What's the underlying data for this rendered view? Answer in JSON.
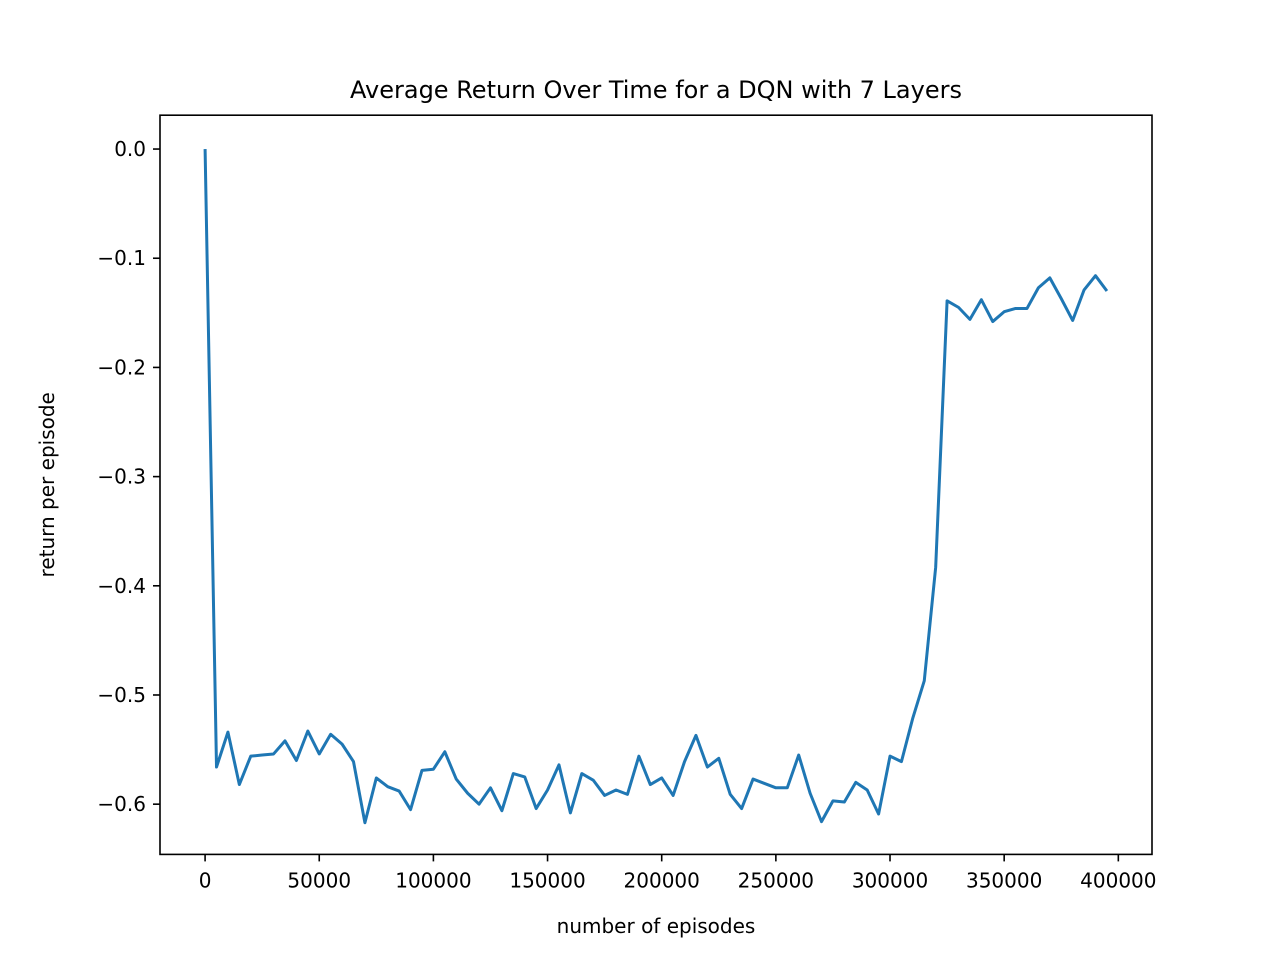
{
  "chart_data": {
    "type": "line",
    "title": "Average Return Over Time for a DQN with 7 Layers",
    "xlabel": "number of episodes",
    "ylabel": "return per episode",
    "xlim": [
      -19750,
      414750
    ],
    "ylim": [
      -0.646,
      0.031
    ],
    "xticks": [
      {
        "value": 0,
        "label": "0"
      },
      {
        "value": 50000,
        "label": "50000"
      },
      {
        "value": 100000,
        "label": "100000"
      },
      {
        "value": 150000,
        "label": "150000"
      },
      {
        "value": 200000,
        "label": "200000"
      },
      {
        "value": 250000,
        "label": "250000"
      },
      {
        "value": 300000,
        "label": "300000"
      },
      {
        "value": 350000,
        "label": "350000"
      },
      {
        "value": 400000,
        "label": "400000"
      }
    ],
    "yticks": [
      {
        "value": 0.0,
        "label": "0.0"
      },
      {
        "value": -0.1,
        "label": "−0.1"
      },
      {
        "value": -0.2,
        "label": "−0.2"
      },
      {
        "value": -0.3,
        "label": "−0.3"
      },
      {
        "value": -0.4,
        "label": "−0.4"
      },
      {
        "value": -0.5,
        "label": "−0.5"
      },
      {
        "value": -0.6,
        "label": "−0.6"
      }
    ],
    "grid": false,
    "series": [
      {
        "color": "#1f77b4",
        "x": [
          0,
          5000,
          10000,
          15000,
          20000,
          25000,
          30000,
          35000,
          40000,
          45000,
          50000,
          55000,
          60000,
          65000,
          70000,
          75000,
          80000,
          85000,
          90000,
          95000,
          100000,
          105000,
          110000,
          115000,
          120000,
          125000,
          130000,
          135000,
          140000,
          145000,
          150000,
          155000,
          160000,
          165000,
          170000,
          175000,
          180000,
          185000,
          190000,
          195000,
          200000,
          205000,
          210000,
          215000,
          220000,
          225000,
          230000,
          235000,
          240000,
          245000,
          250000,
          255000,
          260000,
          265000,
          270000,
          275000,
          280000,
          285000,
          290000,
          295000,
          300000,
          305000,
          310000,
          315000,
          320000,
          325000,
          330000,
          335000,
          340000,
          345000,
          350000,
          355000,
          360000,
          365000,
          370000,
          375000,
          380000,
          385000,
          390000,
          395000
        ],
        "y": [
          0.0,
          -0.566,
          -0.534,
          -0.582,
          -0.556,
          -0.555,
          -0.554,
          -0.542,
          -0.56,
          -0.533,
          -0.554,
          -0.536,
          -0.545,
          -0.561,
          -0.617,
          -0.576,
          -0.584,
          -0.588,
          -0.605,
          -0.569,
          -0.568,
          -0.552,
          -0.577,
          -0.59,
          -0.6,
          -0.585,
          -0.606,
          -0.572,
          -0.575,
          -0.604,
          -0.587,
          -0.564,
          -0.608,
          -0.572,
          -0.578,
          -0.592,
          -0.587,
          -0.591,
          -0.556,
          -0.582,
          -0.576,
          -0.592,
          -0.561,
          -0.537,
          -0.566,
          -0.558,
          -0.591,
          -0.604,
          -0.577,
          -0.581,
          -0.585,
          -0.585,
          -0.555,
          -0.59,
          -0.616,
          -0.597,
          -0.598,
          -0.58,
          -0.587,
          -0.609,
          -0.556,
          -0.561,
          -0.521,
          -0.487,
          -0.383,
          -0.139,
          -0.145,
          -0.156,
          -0.138,
          -0.158,
          -0.149,
          -0.146,
          -0.146,
          -0.127,
          -0.118,
          -0.137,
          -0.157,
          -0.129,
          -0.116,
          -0.13
        ]
      }
    ]
  }
}
